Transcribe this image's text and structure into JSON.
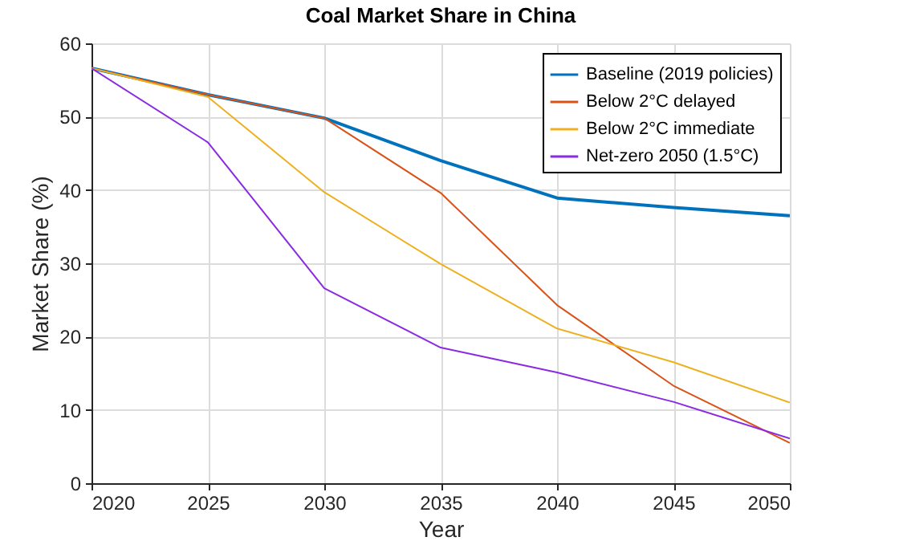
{
  "chart_data": {
    "type": "line",
    "title": "Coal Market Share in China",
    "xlabel": "Year",
    "ylabel": "Market Share (%)",
    "x": [
      2020,
      2025,
      2030,
      2035,
      2040,
      2045,
      2050
    ],
    "xlim": [
      2020,
      2050
    ],
    "xticks": [
      2020,
      2025,
      2030,
      2035,
      2040,
      2045,
      2050
    ],
    "ylim": [
      0,
      60
    ],
    "yticks": [
      0,
      10,
      20,
      30,
      40,
      50,
      60
    ],
    "grid": true,
    "legend": "top right",
    "series": [
      {
        "name": "Baseline (2019 policies)",
        "color": "#0072bd",
        "values": [
          56.6,
          53.0,
          49.8,
          44.0,
          38.9,
          37.6,
          36.5
        ]
      },
      {
        "name": "Below 2°C delayed",
        "color": "#d95319",
        "values": [
          56.6,
          53.0,
          49.8,
          39.6,
          24.3,
          13.3,
          5.5
        ]
      },
      {
        "name": "Below 2°C immediate",
        "color": "#edb120",
        "values": [
          56.6,
          52.7,
          39.7,
          29.9,
          21.1,
          16.5,
          11.0
        ]
      },
      {
        "name": "Net-zero 2050 (1.5°C)",
        "color": "#8a2be2",
        "values": [
          56.6,
          46.5,
          26.6,
          18.5,
          15.1,
          11.1,
          6.1
        ]
      }
    ]
  }
}
